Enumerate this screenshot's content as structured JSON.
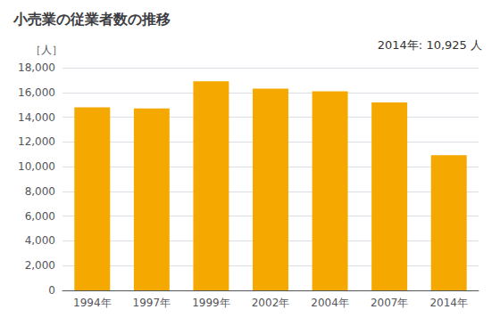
{
  "chart_data": {
    "type": "bar",
    "title": "小売業の従業者数の推移",
    "ylabel": "［人］",
    "annotation": "2014年: 10,925 人",
    "categories": [
      "1994年",
      "1997年",
      "1999年",
      "2002年",
      "2004年",
      "2007年",
      "2014年"
    ],
    "values": [
      14800,
      14700,
      16900,
      16300,
      16100,
      15200,
      10925
    ],
    "color": "#F5A800",
    "ylim": [
      0,
      18000
    ],
    "yticks": [
      0,
      {
        "value": 2000,
        "label": "2,000"
      },
      {
        "value": 4000,
        "label": "4,000"
      },
      {
        "value": 6000,
        "label": "6,000"
      },
      {
        "value": 8000,
        "label": "8,000"
      },
      {
        "value": 10000,
        "label": "10,000"
      },
      {
        "value": 12000,
        "label": "12,000"
      },
      {
        "value": 14000,
        "label": "14,000"
      },
      {
        "value": 16000,
        "label": "16,000"
      },
      {
        "value": 18000,
        "label": "18,000"
      }
    ],
    "grid": true
  }
}
